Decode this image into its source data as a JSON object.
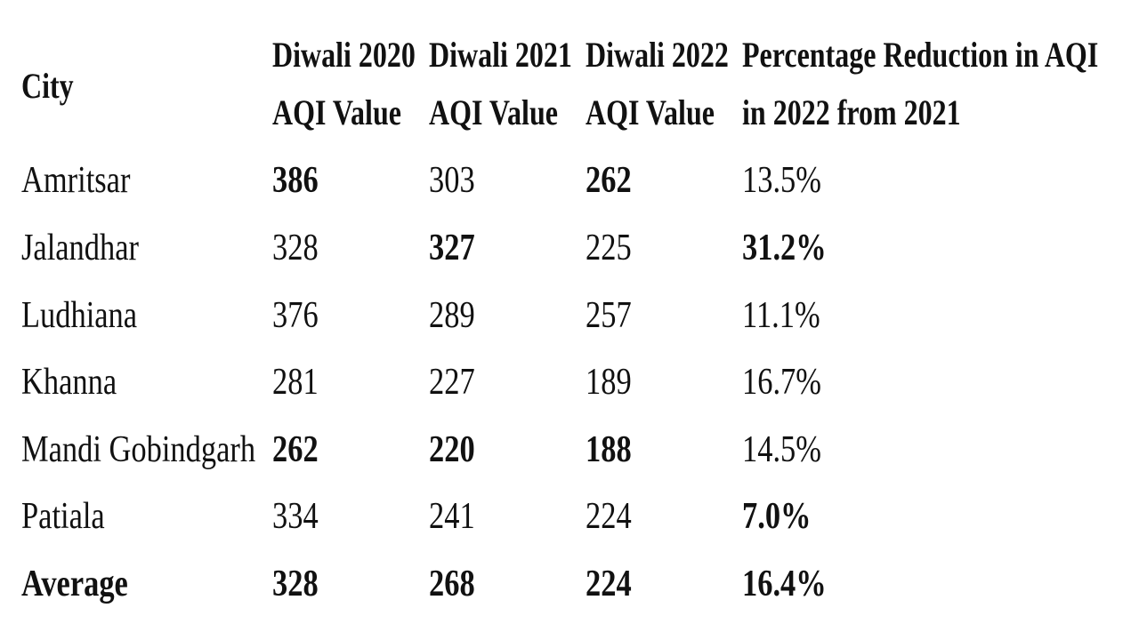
{
  "table": {
    "columns": [
      {
        "lines": [
          "City"
        ]
      },
      {
        "lines": [
          "Diwali 2020",
          "AQI Value"
        ]
      },
      {
        "lines": [
          "Diwali 2021",
          "AQI Value"
        ]
      },
      {
        "lines": [
          "Diwali 2022",
          "AQI Value"
        ]
      },
      {
        "lines": [
          "Percentage Reduction in AQI",
          "in 2022 from 2021"
        ]
      }
    ],
    "rows": [
      [
        "Amritsar",
        386,
        303,
        262,
        "13.5%"
      ],
      [
        "Jalandhar",
        328,
        327,
        225,
        "31.2%"
      ],
      [
        "Ludhiana",
        376,
        289,
        257,
        "11.1%"
      ],
      [
        "Khanna",
        281,
        227,
        189,
        "16.7%"
      ],
      [
        "Mandi Gobindgarh",
        262,
        220,
        188,
        "14.5%"
      ],
      [
        "Patiala",
        334,
        241,
        224,
        "7.0%"
      ],
      [
        "Average",
        328,
        268,
        224,
        "16.4%"
      ]
    ]
  }
}
